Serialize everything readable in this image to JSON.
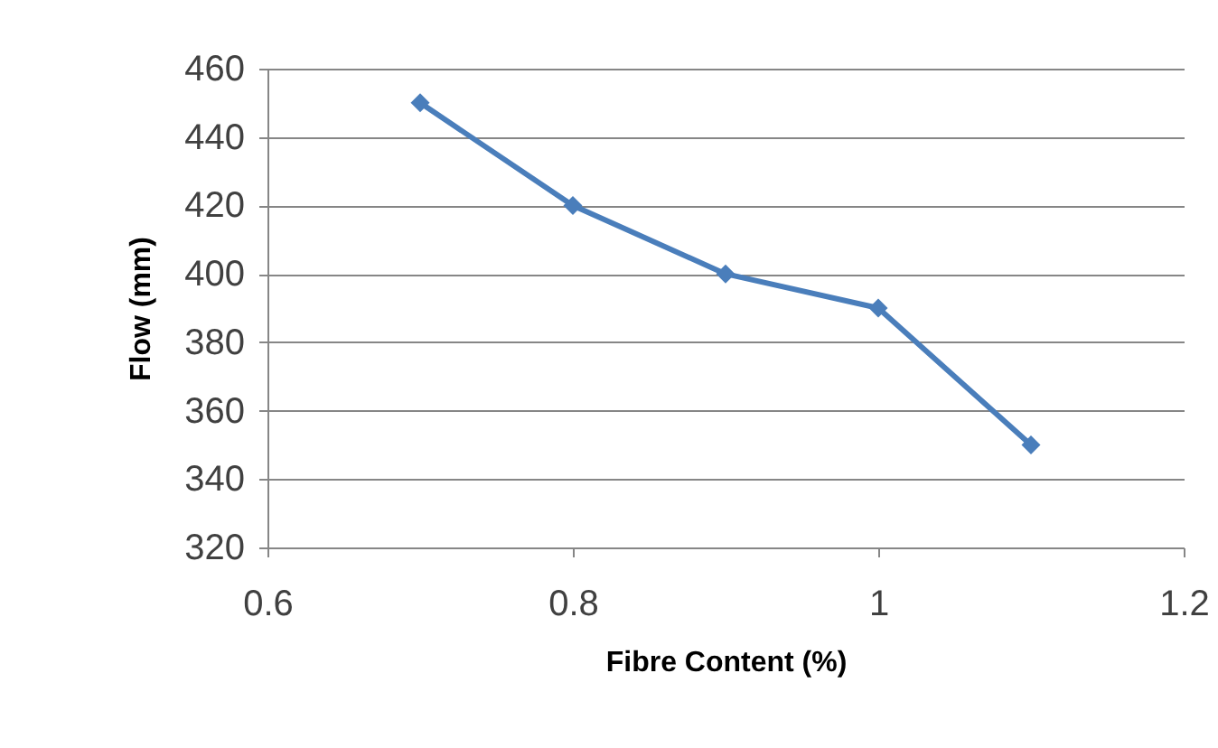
{
  "chart_data": {
    "type": "line",
    "xlabel": "Fibre Content (%)",
    "ylabel": "Flow (mm)",
    "x": [
      0.7,
      0.8,
      0.9,
      1.0,
      1.1
    ],
    "series": [
      {
        "color": "#4a7ebb",
        "values": [
          450,
          420,
          400,
          390,
          350
        ]
      }
    ],
    "xlim": [
      0.6,
      1.2
    ],
    "xticks": [
      0.6,
      0.8,
      1,
      1.2
    ],
    "ylim": [
      320,
      460
    ],
    "yticks": [
      320,
      340,
      360,
      380,
      400,
      420,
      440,
      460
    ],
    "grid": "y",
    "legend": false,
    "marker": "diamond",
    "line_style": "solid"
  }
}
